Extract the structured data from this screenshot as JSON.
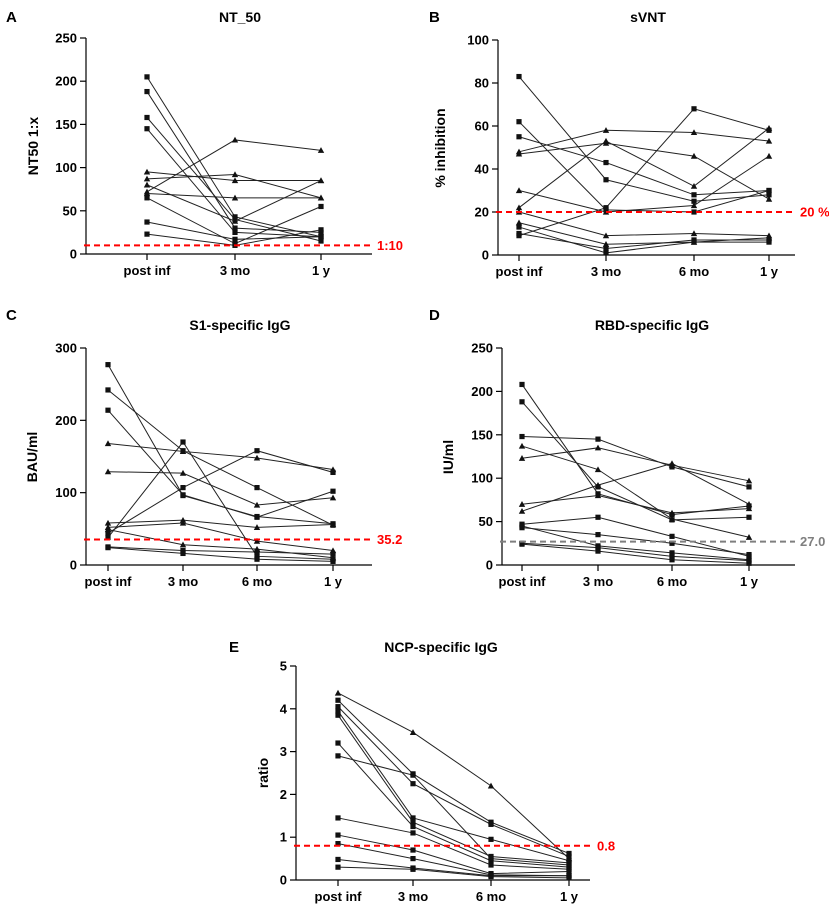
{
  "chart_data": [
    {
      "id": "A",
      "type": "line",
      "letter": "A",
      "title": "NT_50",
      "ylabel": "NT50 1:x",
      "categories": [
        "post inf",
        "3 mo",
        "1 y"
      ],
      "ylim": [
        0,
        250
      ],
      "yticks": [
        0,
        50,
        100,
        150,
        200,
        250
      ],
      "threshold": {
        "value": 10,
        "label": "1:10",
        "color": "#ff0000"
      },
      "series": [
        {
          "name": "s1",
          "marker": "square",
          "values": [
            205,
            43,
            20
          ]
        },
        {
          "name": "s2",
          "marker": "square",
          "values": [
            188,
            30,
            25
          ]
        },
        {
          "name": "s3",
          "marker": "square",
          "values": [
            158,
            40,
            15
          ]
        },
        {
          "name": "s4",
          "marker": "square",
          "values": [
            145,
            25,
            20
          ]
        },
        {
          "name": "s5",
          "marker": "triangle",
          "values": [
            95,
            85,
            85
          ]
        },
        {
          "name": "s6",
          "marker": "triangle",
          "values": [
            87,
            92,
            65
          ]
        },
        {
          "name": "s7",
          "marker": "triangle",
          "values": [
            80,
            38,
            85
          ]
        },
        {
          "name": "s8",
          "marker": "triangle",
          "values": [
            72,
            132,
            120
          ]
        },
        {
          "name": "s9",
          "marker": "triangle",
          "values": [
            70,
            65,
            65
          ]
        },
        {
          "name": "s10",
          "marker": "square",
          "values": [
            65,
            12,
            55
          ]
        },
        {
          "name": "s11",
          "marker": "square",
          "values": [
            37,
            17,
            20
          ]
        },
        {
          "name": "s12",
          "marker": "square",
          "values": [
            23,
            10,
            28
          ]
        }
      ]
    },
    {
      "id": "B",
      "type": "line",
      "letter": "B",
      "title": "sVNT",
      "ylabel": "% inhibition",
      "categories": [
        "post inf",
        "3 mo",
        "6 mo",
        "1 y"
      ],
      "ylim": [
        0,
        100
      ],
      "yticks": [
        0,
        20,
        40,
        60,
        80,
        100
      ],
      "threshold": {
        "value": 20,
        "label": "20 %",
        "color": "#ff0000"
      },
      "series": [
        {
          "name": "s1",
          "marker": "square",
          "values": [
            83,
            35,
            25,
            28
          ]
        },
        {
          "name": "s2",
          "marker": "square",
          "values": [
            62,
            21,
            20,
            30
          ]
        },
        {
          "name": "s3",
          "marker": "square",
          "values": [
            55,
            43,
            28,
            30
          ]
        },
        {
          "name": "s4",
          "marker": "triangle",
          "values": [
            48,
            58,
            57,
            53
          ]
        },
        {
          "name": "s5",
          "marker": "triangle",
          "values": [
            47,
            52,
            46,
            26
          ]
        },
        {
          "name": "s6",
          "marker": "triangle",
          "values": [
            30,
            20,
            23,
            46
          ]
        },
        {
          "name": "s7",
          "marker": "triangle",
          "values": [
            22,
            53,
            32,
            59
          ]
        },
        {
          "name": "s8",
          "marker": "triangle",
          "values": [
            20,
            9,
            10,
            9
          ]
        },
        {
          "name": "s9",
          "marker": "triangle",
          "values": [
            15,
            5,
            6,
            8
          ]
        },
        {
          "name": "s10",
          "marker": "square",
          "values": [
            13,
            1,
            6,
            6
          ]
        },
        {
          "name": "s11",
          "marker": "square",
          "values": [
            10,
            3,
            7,
            7
          ]
        },
        {
          "name": "s12",
          "marker": "square",
          "values": [
            9,
            22,
            68,
            58
          ]
        }
      ]
    },
    {
      "id": "C",
      "type": "line",
      "letter": "C",
      "title": "S1-specific IgG",
      "ylabel": "BAU/ml",
      "categories": [
        "post inf",
        "3 mo",
        "6 mo",
        "1 y"
      ],
      "ylim": [
        0,
        300
      ],
      "yticks": [
        0,
        100,
        200,
        300
      ],
      "threshold": {
        "value": 35.2,
        "label": "35.2",
        "color": "#ff0000"
      },
      "series": [
        {
          "name": "s1",
          "marker": "square",
          "values": [
            277,
            96,
            67,
            57
          ]
        },
        {
          "name": "s2",
          "marker": "square",
          "values": [
            242,
            158,
            107,
            55
          ]
        },
        {
          "name": "s3",
          "marker": "square",
          "values": [
            214,
            97,
            66,
            102
          ]
        },
        {
          "name": "s4",
          "marker": "triangle",
          "values": [
            168,
            157,
            148,
            132
          ]
        },
        {
          "name": "s5",
          "marker": "triangle",
          "values": [
            129,
            127,
            83,
            93
          ]
        },
        {
          "name": "s6",
          "marker": "triangle",
          "values": [
            58,
            62,
            52,
            56
          ]
        },
        {
          "name": "s7",
          "marker": "triangle",
          "values": [
            52,
            58,
            33,
            20
          ]
        },
        {
          "name": "s8",
          "marker": "triangle",
          "values": [
            49,
            28,
            22,
            10
          ]
        },
        {
          "name": "s9",
          "marker": "square",
          "values": [
            44,
            107,
            158,
            128
          ]
        },
        {
          "name": "s10",
          "marker": "square",
          "values": [
            38,
            170,
            12,
            8
          ]
        },
        {
          "name": "s11",
          "marker": "square",
          "values": [
            25,
            20,
            18,
            15
          ]
        },
        {
          "name": "s12",
          "marker": "square",
          "values": [
            24,
            16,
            8,
            5
          ]
        }
      ]
    },
    {
      "id": "D",
      "type": "line",
      "letter": "D",
      "title": "RBD-specific IgG",
      "ylabel": "IU/ml",
      "categories": [
        "post inf",
        "3 mo",
        "6 mo",
        "1 y"
      ],
      "ylim": [
        0,
        250
      ],
      "yticks": [
        0,
        50,
        100,
        150,
        200,
        250
      ],
      "threshold": {
        "value": 27.0,
        "label": "27.0",
        "color": "#7f7f7f"
      },
      "series": [
        {
          "name": "s1",
          "marker": "square",
          "values": [
            208,
            82,
            58,
            68
          ]
        },
        {
          "name": "s2",
          "marker": "square",
          "values": [
            188,
            90,
            52,
            55
          ]
        },
        {
          "name": "s3",
          "marker": "square",
          "values": [
            148,
            145,
            113,
            90
          ]
        },
        {
          "name": "s4",
          "marker": "triangle",
          "values": [
            137,
            110,
            53,
            32
          ]
        },
        {
          "name": "s5",
          "marker": "triangle",
          "values": [
            123,
            135,
            115,
            97
          ]
        },
        {
          "name": "s6",
          "marker": "triangle",
          "values": [
            70,
            80,
            60,
            65
          ]
        },
        {
          "name": "s7",
          "marker": "triangle",
          "values": [
            62,
            92,
            117,
            70
          ]
        },
        {
          "name": "s8",
          "marker": "square",
          "values": [
            47,
            55,
            33,
            10
          ]
        },
        {
          "name": "s9",
          "marker": "square",
          "values": [
            43,
            35,
            25,
            12
          ]
        },
        {
          "name": "s10",
          "marker": "square",
          "values": [
            45,
            22,
            14,
            6
          ]
        },
        {
          "name": "s11",
          "marker": "square",
          "values": [
            25,
            20,
            10,
            5
          ]
        },
        {
          "name": "s12",
          "marker": "square",
          "values": [
            24,
            16,
            6,
            2
          ]
        }
      ]
    },
    {
      "id": "E",
      "type": "line",
      "letter": "E",
      "title": "NCP-specific IgG",
      "ylabel": "ratio",
      "categories": [
        "post inf",
        "3 mo",
        "6 mo",
        "1 y"
      ],
      "ylim": [
        0,
        5
      ],
      "yticks": [
        0,
        1,
        2,
        3,
        4,
        5
      ],
      "threshold": {
        "value": 0.8,
        "label": "0.8",
        "color": "#ff0000"
      },
      "series": [
        {
          "name": "s1",
          "marker": "triangle",
          "values": [
            4.37,
            3.45,
            2.2,
            0.5
          ]
        },
        {
          "name": "s2",
          "marker": "square",
          "values": [
            4.2,
            2.48,
            1.35,
            0.62
          ]
        },
        {
          "name": "s3",
          "marker": "square",
          "values": [
            4.05,
            2.25,
            1.3,
            0.55
          ]
        },
        {
          "name": "s4",
          "marker": "square",
          "values": [
            3.95,
            1.45,
            0.95,
            0.45
          ]
        },
        {
          "name": "s5",
          "marker": "square",
          "values": [
            3.85,
            1.35,
            0.55,
            0.4
          ]
        },
        {
          "name": "s6",
          "marker": "square",
          "values": [
            3.2,
            1.25,
            0.45,
            0.3
          ]
        },
        {
          "name": "s7",
          "marker": "square",
          "values": [
            2.9,
            2.45,
            0.5,
            0.35
          ]
        },
        {
          "name": "s8",
          "marker": "square",
          "values": [
            1.45,
            1.1,
            0.35,
            0.25
          ]
        },
        {
          "name": "s9",
          "marker": "square",
          "values": [
            1.05,
            0.7,
            0.15,
            0.2
          ]
        },
        {
          "name": "s10",
          "marker": "square",
          "values": [
            0.85,
            0.5,
            0.12,
            0.1
          ]
        },
        {
          "name": "s11",
          "marker": "square",
          "values": [
            0.48,
            0.28,
            0.1,
            0.1
          ]
        },
        {
          "name": "s12",
          "marker": "square",
          "values": [
            0.3,
            0.25,
            0.08,
            0.05
          ]
        }
      ]
    }
  ]
}
